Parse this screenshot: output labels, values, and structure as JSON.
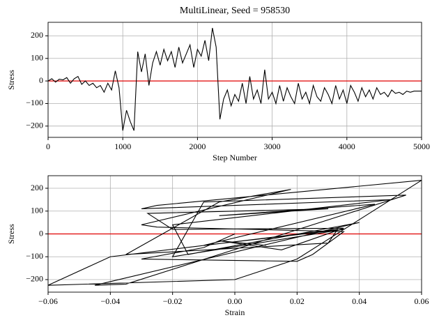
{
  "chart_data": [
    {
      "type": "line",
      "title": "MultiLinear, Seed = 958530",
      "xlabel": "Step Number",
      "ylabel": "Stress",
      "x": [
        0,
        50,
        100,
        150,
        200,
        250,
        300,
        350,
        400,
        450,
        500,
        550,
        600,
        650,
        700,
        750,
        800,
        850,
        900,
        950,
        1000,
        1050,
        1100,
        1150,
        1200,
        1250,
        1300,
        1350,
        1400,
        1450,
        1500,
        1550,
        1600,
        1650,
        1700,
        1750,
        1800,
        1850,
        1900,
        1950,
        2000,
        2050,
        2100,
        2150,
        2200,
        2250,
        2300,
        2350,
        2400,
        2450,
        2500,
        2550,
        2600,
        2650,
        2700,
        2750,
        2800,
        2850,
        2900,
        2950,
        3000,
        3050,
        3100,
        3150,
        3200,
        3250,
        3300,
        3350,
        3400,
        3450,
        3500,
        3550,
        3600,
        3650,
        3700,
        3750,
        3800,
        3850,
        3900,
        3950,
        4000,
        4050,
        4100,
        4150,
        4200,
        4250,
        4300,
        4350,
        4400,
        4450,
        4500,
        4550,
        4600,
        4650,
        4700,
        4750,
        4800,
        4850,
        4900,
        4950,
        5000
      ],
      "values": [
        0,
        10,
        -5,
        8,
        5,
        15,
        -10,
        10,
        20,
        -15,
        0,
        -20,
        -10,
        -30,
        -20,
        -50,
        -10,
        -40,
        45,
        -30,
        -220,
        -130,
        -180,
        -220,
        130,
        40,
        120,
        -20,
        80,
        130,
        70,
        140,
        90,
        130,
        60,
        150,
        80,
        120,
        160,
        60,
        140,
        110,
        180,
        90,
        235,
        150,
        -170,
        -80,
        -40,
        -110,
        -60,
        -90,
        -10,
        -100,
        20,
        -80,
        -40,
        -100,
        50,
        -80,
        -50,
        -100,
        -20,
        -90,
        -30,
        -70,
        -100,
        -10,
        -80,
        -50,
        -100,
        -20,
        -70,
        -90,
        -30,
        -60,
        -100,
        -20,
        -80,
        -40,
        -100,
        -20,
        -50,
        -90,
        -30,
        -70,
        -40,
        -80,
        -30,
        -60,
        -50,
        -70,
        -40,
        -55,
        -50,
        -60,
        -45,
        -50,
        -45,
        -45,
        -45
      ],
      "color": "#000000",
      "hline": 0,
      "hline_color": "#e00000",
      "xlim": [
        0,
        5000
      ],
      "xticks": [
        0,
        1000,
        2000,
        3000,
        4000,
        5000
      ],
      "ylim": [
        -250,
        260
      ],
      "yticks": [
        {
          "value": -200,
          "label": "−200"
        },
        {
          "value": -100,
          "label": "−100"
        },
        0,
        100,
        200
      ],
      "grid": true
    },
    {
      "type": "line",
      "xlabel": "Strain",
      "ylabel": "Stress",
      "x": [
        0,
        -0.01,
        -0.03,
        0.02,
        0.025,
        0.035,
        -0.025,
        -0.03,
        0.018,
        -0.005,
        -0.035,
        0.03,
        0.033,
        -0.04,
        -0.06,
        0.0,
        0.02,
        0.06,
        -0.025,
        -0.03,
        0.05,
        -0.02,
        -0.015,
        0.04,
        -0.045,
        -0.035,
        0.055,
        -0.01,
        -0.02,
        0.035,
        -0.01,
        0.045,
        -0.005,
        0.03,
        -0.028,
        -0.02,
        0.035,
        0.015,
        -0.005,
        0.01
      ],
      "values": [
        0,
        -60,
        -110,
        -120,
        -90,
        10,
        30,
        40,
        195,
        140,
        -90,
        -40,
        20,
        -100,
        -225,
        -200,
        -110,
        235,
        125,
        110,
        150,
        40,
        -90,
        50,
        -225,
        -220,
        170,
        140,
        -100,
        20,
        -50,
        130,
        80,
        110,
        90,
        20,
        25,
        -70,
        -30,
        -50
      ],
      "color": "#000000",
      "hline": 0,
      "hline_color": "#e00000",
      "xlim": [
        -0.06,
        0.06
      ],
      "xticks": [
        {
          "value": -0.06,
          "label": "−0.06"
        },
        {
          "value": -0.04,
          "label": "−0.04"
        },
        {
          "value": -0.02,
          "label": "−0.02"
        },
        {
          "value": 0,
          "label": "0.00"
        },
        {
          "value": 0.02,
          "label": "0.02"
        },
        {
          "value": 0.04,
          "label": "0.04"
        },
        {
          "value": 0.06,
          "label": "0.06"
        }
      ],
      "ylim": [
        -255,
        255
      ],
      "yticks": [
        {
          "value": -200,
          "label": "−200"
        },
        {
          "value": -100,
          "label": "−100"
        },
        0,
        100,
        200
      ],
      "grid": true
    }
  ]
}
